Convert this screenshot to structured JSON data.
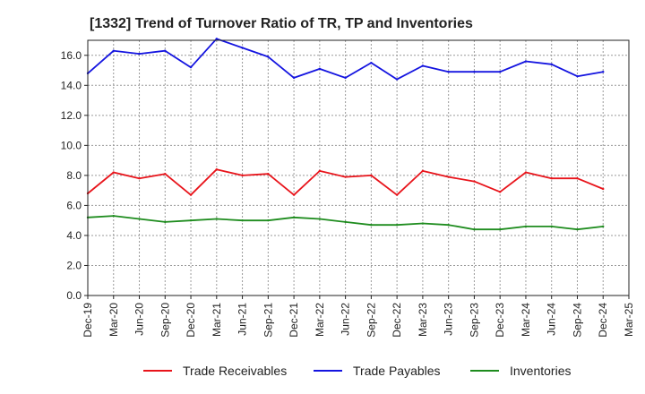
{
  "chart_data": {
    "type": "line",
    "title": "[1332]  Trend of Turnover Ratio of TR, TP and Inventories",
    "xlabel": "",
    "ylabel": "",
    "ylim": [
      0,
      17.0
    ],
    "yticks": [
      "0.0",
      "2.0",
      "4.0",
      "6.0",
      "8.0",
      "10.0",
      "12.0",
      "14.0",
      "16.0"
    ],
    "x": [
      "Dec-19",
      "Mar-20",
      "Jun-20",
      "Sep-20",
      "Dec-20",
      "Mar-21",
      "Jun-21",
      "Sep-21",
      "Dec-21",
      "Mar-22",
      "Jun-22",
      "Sep-22",
      "Dec-22",
      "Mar-23",
      "Jun-23",
      "Sep-23",
      "Dec-23",
      "Mar-24",
      "Jun-24",
      "Sep-24",
      "Dec-24",
      "Mar-25"
    ],
    "grid": true,
    "legend_position": "bottom",
    "series": [
      {
        "name": "Trade Receivables",
        "color": "#e8141b",
        "values": [
          6.8,
          8.2,
          7.8,
          8.1,
          6.7,
          8.4,
          8.0,
          8.1,
          6.7,
          8.3,
          7.9,
          8.0,
          6.7,
          8.3,
          7.9,
          7.6,
          6.9,
          8.2,
          7.8,
          7.8,
          7.1,
          null
        ]
      },
      {
        "name": "Trade Payables",
        "color": "#1414e0",
        "values": [
          14.8,
          16.3,
          16.1,
          16.3,
          15.2,
          17.1,
          16.5,
          15.9,
          14.5,
          15.1,
          14.5,
          15.5,
          14.4,
          15.3,
          14.9,
          14.9,
          14.9,
          15.6,
          15.4,
          14.6,
          14.9,
          null
        ]
      },
      {
        "name": "Inventories",
        "color": "#1e8c1e",
        "values": [
          5.2,
          5.3,
          5.1,
          4.9,
          5.0,
          5.1,
          5.0,
          5.0,
          5.2,
          5.1,
          4.9,
          4.7,
          4.7,
          4.8,
          4.7,
          4.4,
          4.4,
          4.6,
          4.6,
          4.4,
          4.6,
          null
        ]
      }
    ]
  }
}
